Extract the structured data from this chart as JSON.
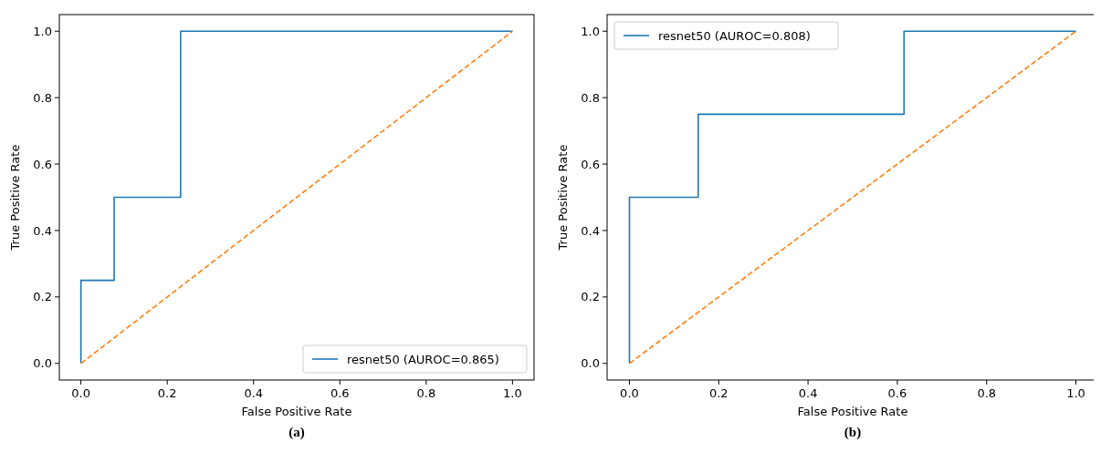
{
  "chart_data": [
    {
      "type": "line",
      "xlabel": "False Positive Rate",
      "ylabel": "True Positive Rate",
      "annotations": [
        "(a)"
      ],
      "xlim": [
        -0.05,
        1.05
      ],
      "ylim": [
        -0.05,
        1.05
      ],
      "xticks": [
        {
          "value": 0,
          "label": "0.0"
        },
        {
          "value": 0.2,
          "label": "0.2"
        },
        {
          "value": 0.4,
          "label": "0.4"
        },
        {
          "value": 0.6,
          "label": "0.6"
        },
        {
          "value": 0.8,
          "label": "0.8"
        },
        {
          "value": 1,
          "label": "1.0"
        }
      ],
      "yticks": [
        {
          "value": 0,
          "label": "0.0"
        },
        {
          "value": 0.2,
          "label": "0.2"
        },
        {
          "value": 0.4,
          "label": "0.4"
        },
        {
          "value": 0.6,
          "label": "0.6"
        },
        {
          "value": 0.8,
          "label": "0.8"
        },
        {
          "value": 1,
          "label": "1.0"
        }
      ],
      "legend": "bottom right",
      "grid": false,
      "series": [
        {
          "name": "resnet50 (AUROC=0.865)",
          "color": "#1f77b4",
          "line_style": "solid",
          "x": [
            0,
            0,
            0.077,
            0.077,
            0.231,
            0.231,
            1
          ],
          "values": [
            0,
            0.25,
            0.25,
            0.5,
            0.5,
            1,
            1
          ]
        },
        {
          "color": "#ff7f0e",
          "line_style": "dashed",
          "x": [
            0,
            1
          ],
          "values": [
            0,
            1
          ]
        }
      ]
    },
    {
      "type": "line",
      "xlabel": "False Positive Rate",
      "ylabel": "True Positive Rate",
      "annotations": [
        "(b)"
      ],
      "xlim": [
        -0.05,
        1.05
      ],
      "ylim": [
        -0.05,
        1.05
      ],
      "xticks": [
        {
          "value": 0,
          "label": "0.0"
        },
        {
          "value": 0.2,
          "label": "0.2"
        },
        {
          "value": 0.4,
          "label": "0.4"
        },
        {
          "value": 0.6,
          "label": "0.6"
        },
        {
          "value": 0.8,
          "label": "0.8"
        },
        {
          "value": 1,
          "label": "1.0"
        }
      ],
      "yticks": [
        {
          "value": 0,
          "label": "0.0"
        },
        {
          "value": 0.2,
          "label": "0.2"
        },
        {
          "value": 0.4,
          "label": "0.4"
        },
        {
          "value": 0.6,
          "label": "0.6"
        },
        {
          "value": 0.8,
          "label": "0.8"
        },
        {
          "value": 1,
          "label": "1.0"
        }
      ],
      "legend": "top left",
      "grid": false,
      "series": [
        {
          "name": "resnet50 (AUROC=0.808)",
          "color": "#1f77b4",
          "line_style": "solid",
          "x": [
            0,
            0,
            0.154,
            0.154,
            0.615,
            0.615,
            1
          ],
          "values": [
            0,
            0.5,
            0.5,
            0.75,
            0.75,
            1,
            1
          ]
        },
        {
          "color": "#ff7f0e",
          "line_style": "dashed",
          "x": [
            0,
            1
          ],
          "values": [
            0,
            1
          ]
        }
      ]
    }
  ]
}
